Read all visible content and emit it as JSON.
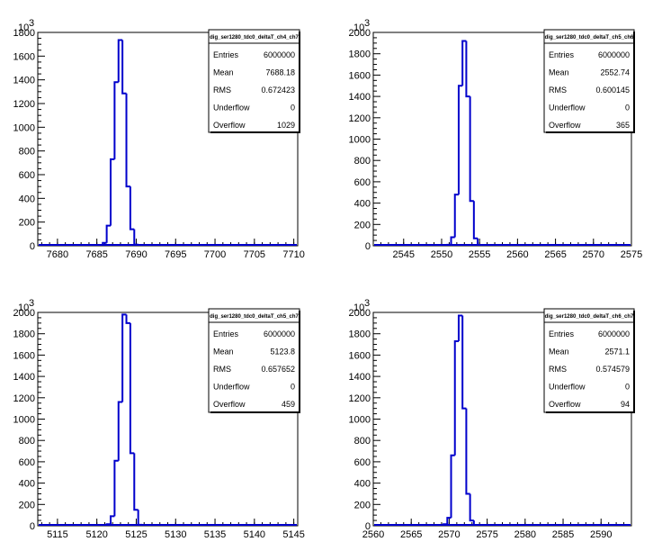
{
  "chart_data": [
    {
      "type": "histogram",
      "title": "dig_ser1280_tdc0_deltaT_ch4_ch7",
      "y_exponent": "10",
      "y_exponent_power": "3",
      "xlim": [
        7677.5,
        7710.5
      ],
      "ylim": [
        0,
        1800
      ],
      "x_ticks": [
        7680,
        7685,
        7690,
        7695,
        7700,
        7705,
        7710
      ],
      "y_ticks": [
        0,
        200,
        400,
        600,
        800,
        1000,
        1200,
        1400,
        1600,
        1800
      ],
      "bin_width": 0.5,
      "bins": [
        {
          "x": 7686.0,
          "value": 25
        },
        {
          "x": 7686.5,
          "value": 170
        },
        {
          "x": 7687.0,
          "value": 730
        },
        {
          "x": 7687.5,
          "value": 1380
        },
        {
          "x": 7688.0,
          "value": 1735
        },
        {
          "x": 7688.5,
          "value": 1285
        },
        {
          "x": 7689.0,
          "value": 500
        },
        {
          "x": 7689.5,
          "value": 140
        },
        {
          "x": 7690.0,
          "value": 10
        }
      ],
      "stats": [
        {
          "label": "Entries",
          "value": "6000000"
        },
        {
          "label": "Mean",
          "value": "7688.18"
        },
        {
          "label": "RMS",
          "value": "0.672423"
        },
        {
          "label": "Underflow",
          "value": "0"
        },
        {
          "label": "Overflow",
          "value": "1029"
        }
      ]
    },
    {
      "type": "histogram",
      "title": "dig_ser1280_tdc0_deltaT_ch5_ch6",
      "y_exponent": "10",
      "y_exponent_power": "3",
      "xlim": [
        2541,
        2575
      ],
      "ylim": [
        0,
        2000
      ],
      "x_ticks": [
        2545,
        2550,
        2555,
        2560,
        2565,
        2570,
        2575
      ],
      "y_ticks": [
        0,
        200,
        400,
        600,
        800,
        1000,
        1200,
        1400,
        1600,
        1800,
        2000
      ],
      "bin_width": 0.5,
      "bins": [
        {
          "x": 2551.0,
          "value": 10
        },
        {
          "x": 2551.5,
          "value": 80
        },
        {
          "x": 2552.0,
          "value": 480
        },
        {
          "x": 2552.5,
          "value": 1500
        },
        {
          "x": 2553.0,
          "value": 1920
        },
        {
          "x": 2553.5,
          "value": 1400
        },
        {
          "x": 2554.0,
          "value": 420
        },
        {
          "x": 2554.5,
          "value": 70
        }
      ],
      "stats": [
        {
          "label": "Entries",
          "value": "6000000"
        },
        {
          "label": "Mean",
          "value": "2552.74"
        },
        {
          "label": "RMS",
          "value": "0.600145"
        },
        {
          "label": "Underflow",
          "value": "0"
        },
        {
          "label": "Overflow",
          "value": "365"
        }
      ]
    },
    {
      "type": "histogram",
      "title": "dig_ser1280_tdc0_deltaT_ch5_ch7",
      "y_exponent": "10",
      "y_exponent_power": "3",
      "xlim": [
        5112.5,
        5145.5
      ],
      "ylim": [
        0,
        2000
      ],
      "x_ticks": [
        5115,
        5120,
        5125,
        5130,
        5135,
        5140,
        5145
      ],
      "y_ticks": [
        0,
        200,
        400,
        600,
        800,
        1000,
        1200,
        1400,
        1600,
        1800,
        2000
      ],
      "bin_width": 0.5,
      "bins": [
        {
          "x": 5121.5,
          "value": 15
        },
        {
          "x": 5122.0,
          "value": 90
        },
        {
          "x": 5122.5,
          "value": 610
        },
        {
          "x": 5123.0,
          "value": 1160
        },
        {
          "x": 5123.5,
          "value": 1980
        },
        {
          "x": 5124.0,
          "value": 1900
        },
        {
          "x": 5124.5,
          "value": 680
        },
        {
          "x": 5125.0,
          "value": 150
        },
        {
          "x": 5125.5,
          "value": 10
        }
      ],
      "stats": [
        {
          "label": "Entries",
          "value": "6000000"
        },
        {
          "label": "Mean",
          "value": "5123.8"
        },
        {
          "label": "RMS",
          "value": "0.657652"
        },
        {
          "label": "Underflow",
          "value": "0"
        },
        {
          "label": "Overflow",
          "value": "459"
        }
      ]
    },
    {
      "type": "histogram",
      "title": "dig_ser1280_tdc0_deltaT_ch6_ch7",
      "y_exponent": "10",
      "y_exponent_power": "3",
      "xlim": [
        2560,
        2594
      ],
      "ylim": [
        0,
        2000
      ],
      "x_ticks": [
        2560,
        2565,
        2570,
        2575,
        2580,
        2585,
        2590
      ],
      "y_ticks": [
        0,
        200,
        400,
        600,
        800,
        1000,
        1200,
        1400,
        1600,
        1800,
        2000
      ],
      "bin_width": 0.5,
      "bins": [
        {
          "x": 2569.5,
          "value": 15
        },
        {
          "x": 2570.0,
          "value": 75
        },
        {
          "x": 2570.5,
          "value": 660
        },
        {
          "x": 2571.0,
          "value": 1730
        },
        {
          "x": 2571.5,
          "value": 1970
        },
        {
          "x": 2572.0,
          "value": 1100
        },
        {
          "x": 2572.5,
          "value": 300
        },
        {
          "x": 2573.0,
          "value": 50
        }
      ],
      "stats": [
        {
          "label": "Entries",
          "value": "6000000"
        },
        {
          "label": "Mean",
          "value": "2571.1"
        },
        {
          "label": "RMS",
          "value": "0.574579"
        },
        {
          "label": "Underflow",
          "value": "0"
        },
        {
          "label": "Overflow",
          "value": "94"
        }
      ]
    }
  ]
}
